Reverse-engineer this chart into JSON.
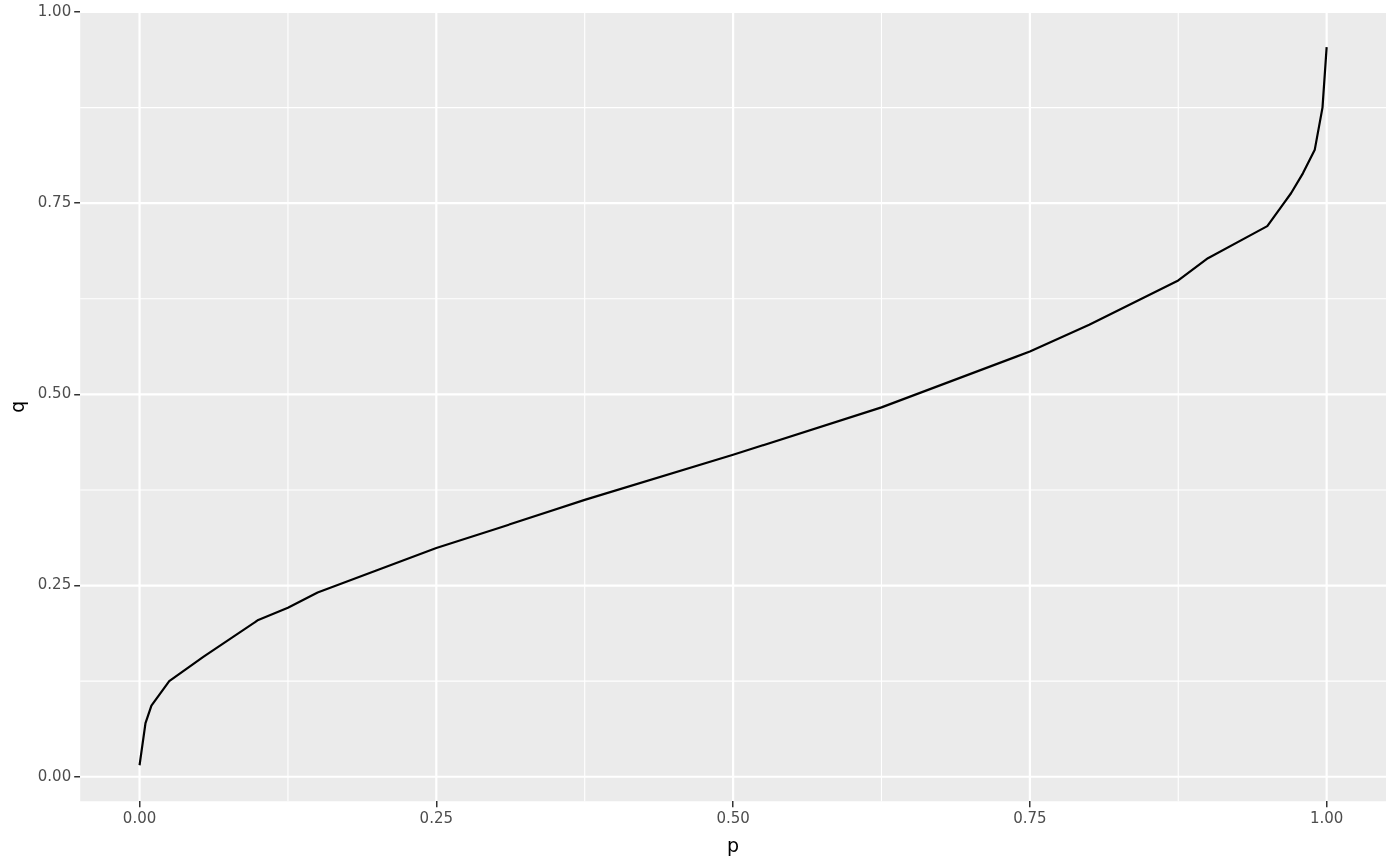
{
  "chart_data": {
    "type": "line",
    "xlabel": "p",
    "ylabel": "q",
    "x": [
      0,
      0.005,
      0.01,
      0.025,
      0.054,
      0.1,
      0.125,
      0.15,
      0.2,
      0.25,
      0.3,
      0.375,
      0.5,
      0.625,
      0.75,
      0.8,
      0.875,
      0.9,
      0.95,
      0.964,
      0.97,
      0.98,
      0.99,
      0.9965,
      1
    ],
    "series": [
      {
        "color": "#000000",
        "values": [
          0.015,
          0.07,
          0.093,
          0.125,
          0.157,
          0.205,
          0.221,
          0.241,
          0.27,
          0.299,
          0.324,
          0.362,
          0.421,
          0.483,
          0.556,
          0.591,
          0.649,
          0.678,
          0.72,
          0.75,
          0.763,
          0.789,
          0.82,
          0.875,
          0.954
        ]
      }
    ],
    "xlim": [
      -0.05,
      1.05
    ],
    "ylim": [
      -0.032,
      1.0
    ],
    "xticks": [
      {
        "value": 0,
        "label": "0.00"
      },
      {
        "value": 0.25,
        "label": "0.25"
      },
      {
        "value": 0.5,
        "label": "0.50"
      },
      {
        "value": 0.75,
        "label": "0.75"
      },
      {
        "value": 1,
        "label": "1.00"
      }
    ],
    "yticks": [
      {
        "value": 0,
        "label": "0.00"
      },
      {
        "value": 0.25,
        "label": "0.25"
      },
      {
        "value": 0.5,
        "label": "0.50"
      },
      {
        "value": 0.75,
        "label": "0.75"
      },
      {
        "value": 1,
        "label": "1.00"
      }
    ],
    "grid": true,
    "legend": false,
    "marker": "none",
    "line_style": "solid"
  }
}
